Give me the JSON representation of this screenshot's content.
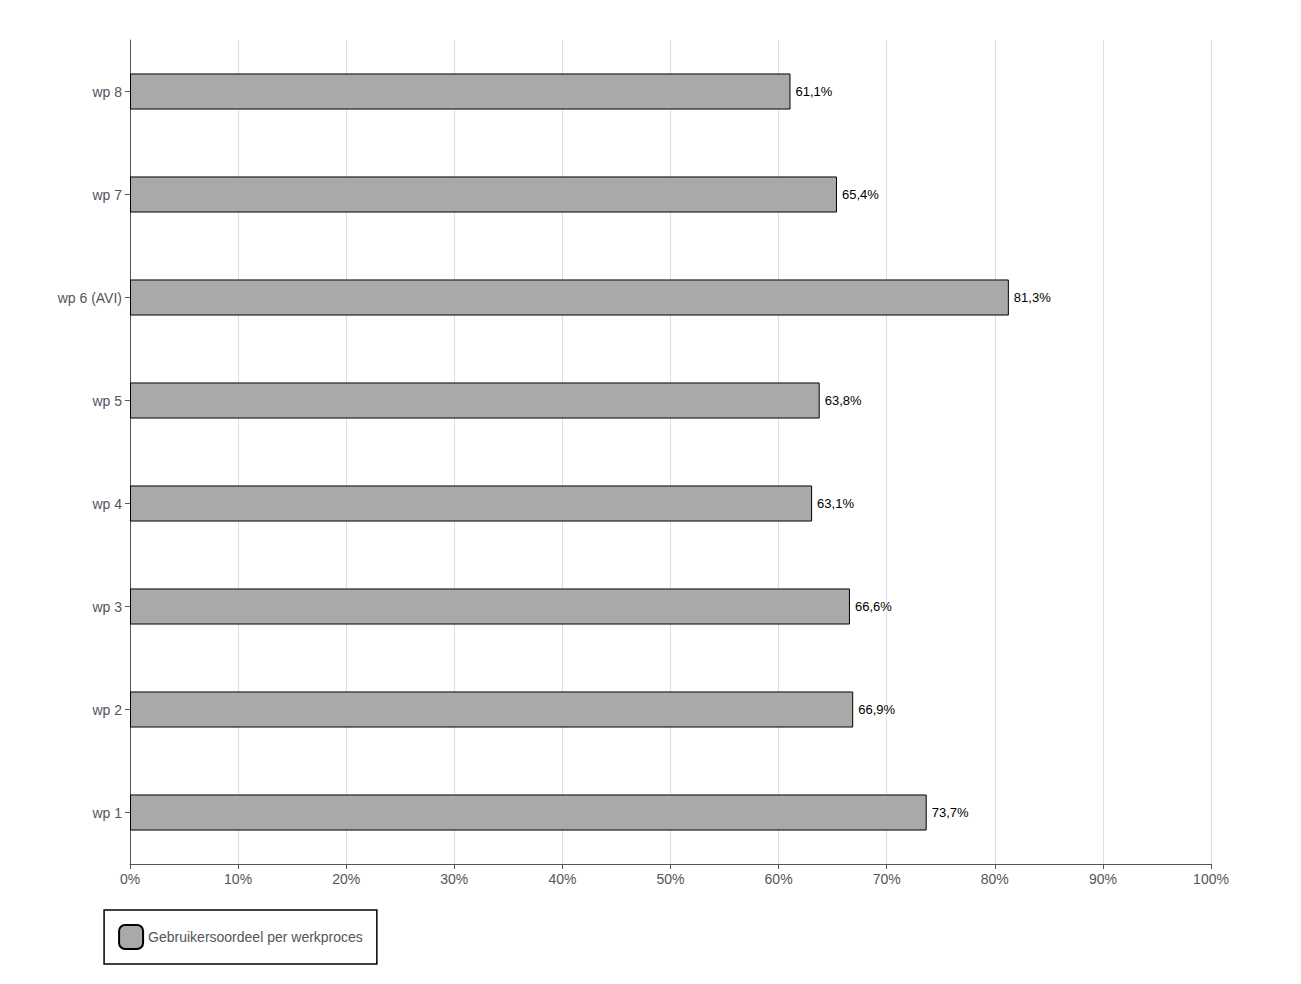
{
  "chart_data": {
    "type": "bar",
    "orientation": "horizontal",
    "categories": [
      "wp 8",
      "wp 7",
      "wp 6 (AVI)",
      "wp 5",
      "wp 4",
      "wp 3",
      "wp 2",
      "wp 1"
    ],
    "series": [
      {
        "name": "Gebruikersoordeel per werkproces",
        "color": "#A9A9A9",
        "values": [
          0.611,
          0.654,
          0.813,
          0.638,
          0.631,
          0.666,
          0.669,
          0.737
        ],
        "value_labels": [
          "61,1%",
          "65,4%",
          "81,3%",
          "63,8%",
          "63,1%",
          "66,6%",
          "66,9%",
          "73,7%"
        ]
      }
    ],
    "xlim": [
      0,
      1.0
    ],
    "xticks": [
      {
        "value": 0.0,
        "label": "0%"
      },
      {
        "value": 0.1,
        "label": "10%"
      },
      {
        "value": 0.2,
        "label": "20%"
      },
      {
        "value": 0.3,
        "label": "30%"
      },
      {
        "value": 0.4,
        "label": "40%"
      },
      {
        "value": 0.5,
        "label": "50%"
      },
      {
        "value": 0.6,
        "label": "60%"
      },
      {
        "value": 0.7,
        "label": "70%"
      },
      {
        "value": 0.8,
        "label": "80%"
      },
      {
        "value": 0.9,
        "label": "90%"
      },
      {
        "value": 1.0,
        "label": "100%"
      }
    ],
    "grid": true,
    "legend": "bottom",
    "data_labels": true
  }
}
